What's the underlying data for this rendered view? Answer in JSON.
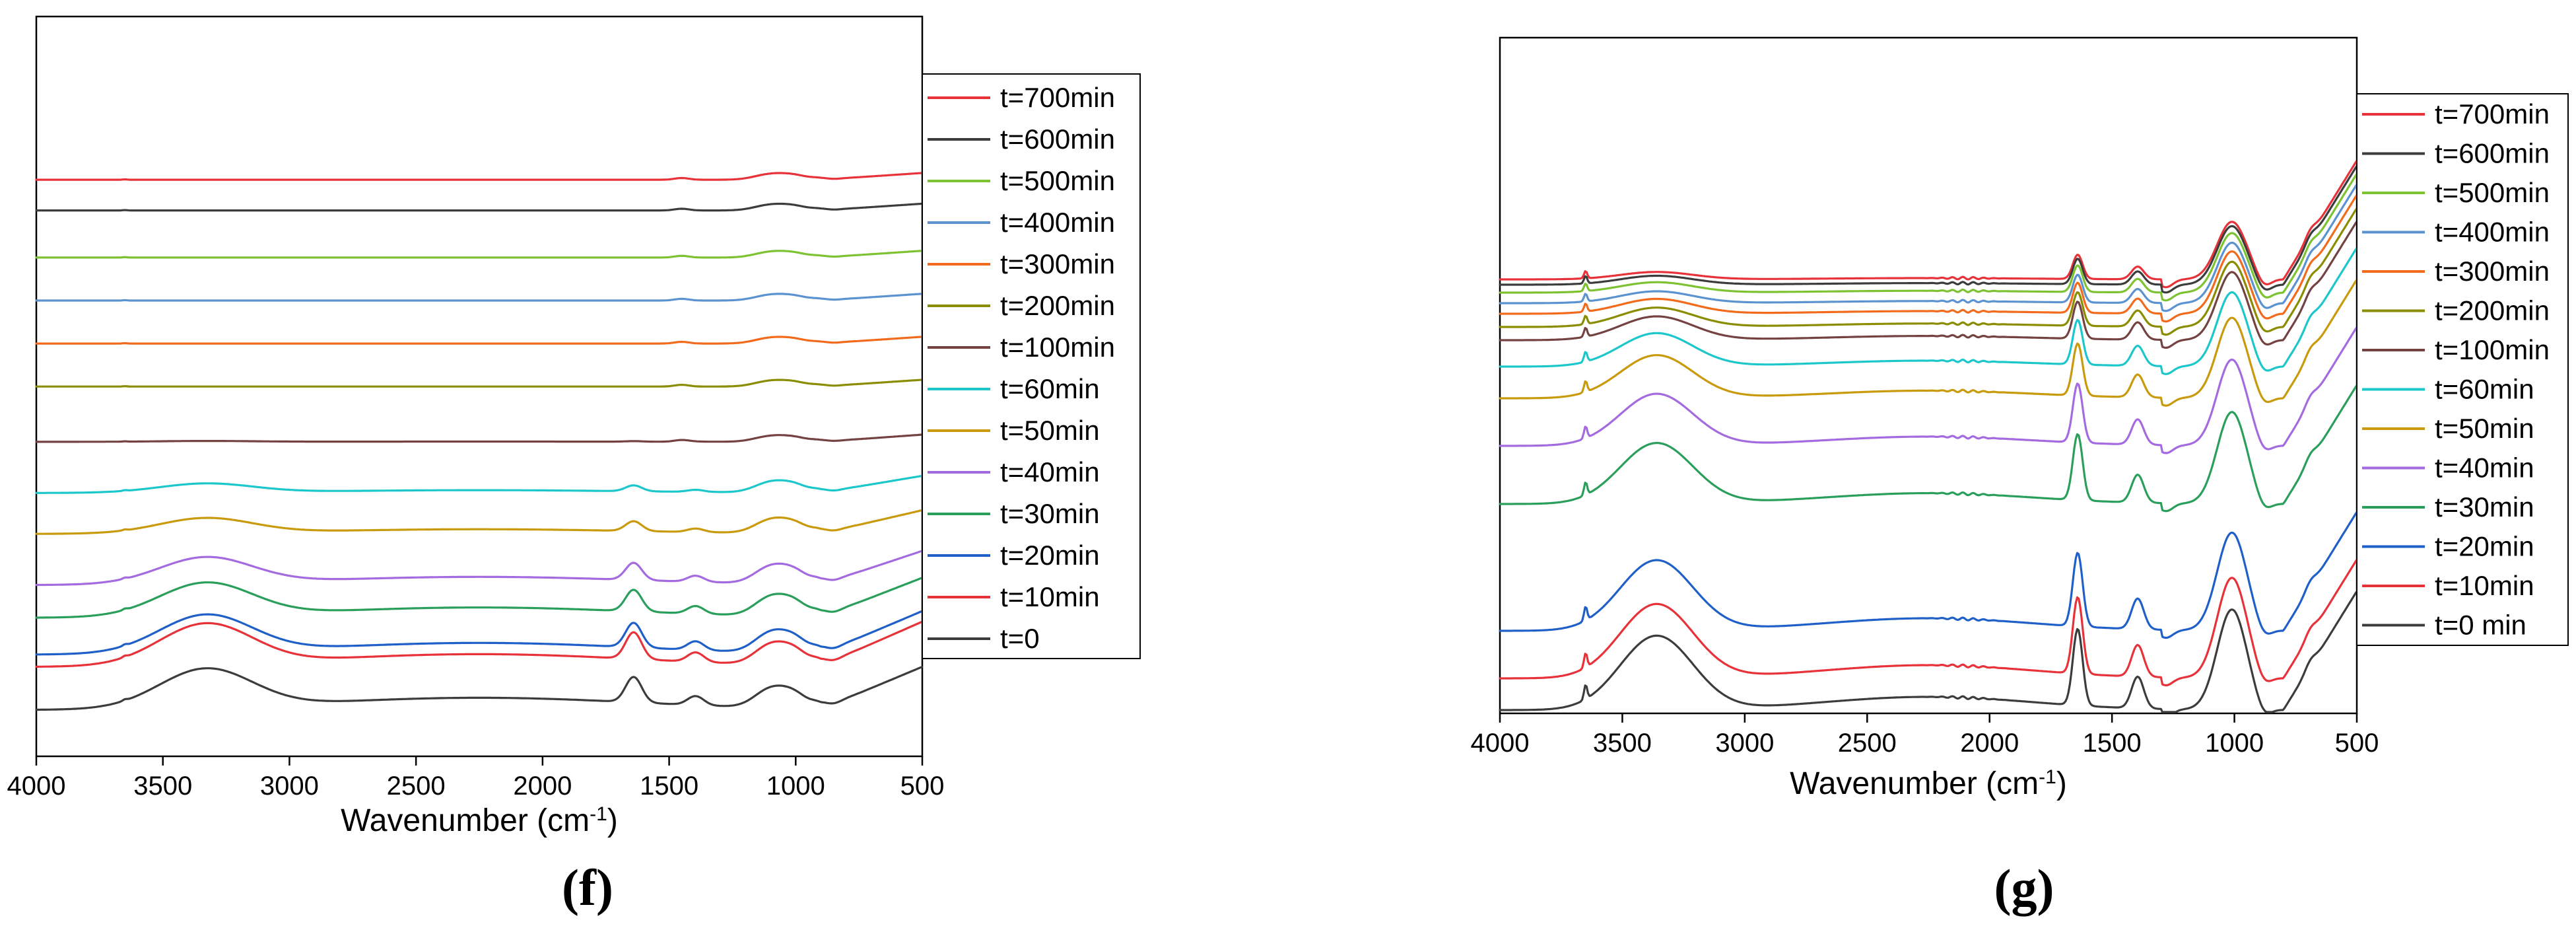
{
  "chart_data": [
    {
      "panel": "(f)",
      "type": "line",
      "title": "",
      "xlabel": "Wavenumber (cm-1)",
      "xlabel_main": "Wavenumber (cm",
      "xlabel_sup": "-1",
      "xlabel_end": ")",
      "ylabel": "",
      "xlim": [
        4000,
        500
      ],
      "xticks": [
        4000,
        3500,
        3000,
        2500,
        2000,
        1500,
        1000,
        500
      ],
      "y_axis": "stacked absorbance traces (no y ticks)",
      "legend_position": "right, outside the plot",
      "series": [
        {
          "name": "t=700min",
          "color": "#E8323A",
          "offset": 12.95,
          "scale": 0.3,
          "pre": 0.0,
          "variant": "late"
        },
        {
          "name": "t=600min",
          "color": "#3C3C3C",
          "offset": 12.2,
          "scale": 0.3,
          "pre": 0.0,
          "variant": "late"
        },
        {
          "name": "t=500min",
          "color": "#7DC231",
          "offset": 11.05,
          "scale": 0.3,
          "pre": 0.0,
          "variant": "late"
        },
        {
          "name": "t=400min",
          "color": "#5B92D0",
          "offset": 10.0,
          "scale": 0.3,
          "pre": 0.0,
          "variant": "late"
        },
        {
          "name": "t=300min",
          "color": "#F26B1D",
          "offset": 8.95,
          "scale": 0.3,
          "pre": 0.0,
          "variant": "late"
        },
        {
          "name": "t=200min",
          "color": "#8A8D00",
          "offset": 7.9,
          "scale": 0.3,
          "pre": 0.0,
          "variant": "late"
        },
        {
          "name": "t=100min",
          "color": "#734241",
          "offset": 6.55,
          "scale": 0.3,
          "pre": 0.07,
          "variant": "mid"
        },
        {
          "name": "t=60min",
          "color": "#1CC7CB",
          "offset": 5.3,
          "scale": 0.55,
          "pre": 0.42,
          "variant": "early"
        },
        {
          "name": "t=50min",
          "color": "#C89A0C",
          "offset": 4.3,
          "scale": 0.7,
          "pre": 0.55,
          "variant": "early"
        },
        {
          "name": "t=40min",
          "color": "#A46AE0",
          "offset": 3.05,
          "scale": 0.9,
          "pre": 0.75,
          "variant": "early"
        },
        {
          "name": "t=30min",
          "color": "#2A9E5B",
          "offset": 2.25,
          "scale": 1.0,
          "pre": 0.85,
          "variant": "early"
        },
        {
          "name": "t=20min",
          "color": "#1F5FC8",
          "offset": 1.35,
          "scale": 1.05,
          "pre": 0.92,
          "variant": "early"
        },
        {
          "name": "t=10min",
          "color": "#E8323A",
          "offset": 1.05,
          "scale": 1.05,
          "pre": 1.0,
          "variant": "early"
        },
        {
          "name": "t=0",
          "color": "#3C3C3C",
          "offset": 0.0,
          "scale": 1.0,
          "pre": 1.0,
          "variant": "early"
        }
      ]
    },
    {
      "panel": "(g)",
      "type": "line",
      "title": "",
      "xlabel": "Wavenumber (cm-1)",
      "xlabel_main": "Wavenumber (cm",
      "xlabel_sup": "-1",
      "xlabel_end": ")",
      "ylabel": "",
      "xlim": [
        4000,
        500
      ],
      "xticks": [
        4000,
        3500,
        3000,
        2500,
        2000,
        1500,
        1000,
        500
      ],
      "y_axis": "stacked absorbance traces (no y ticks)",
      "legend_position": "right, outside the plot",
      "series": [
        {
          "name": "t=700min",
          "color": "#E8323A",
          "offset": 16.3,
          "pre": 0.1
        },
        {
          "name": "t=600min",
          "color": "#3C3C3C",
          "offset": 16.1,
          "pre": 0.12
        },
        {
          "name": "t=500min",
          "color": "#7DC231",
          "offset": 15.8,
          "pre": 0.14
        },
        {
          "name": "t=400min",
          "color": "#5B92D0",
          "offset": 15.4,
          "pre": 0.16
        },
        {
          "name": "t=300min",
          "color": "#F26B1D",
          "offset": 15.0,
          "pre": 0.2
        },
        {
          "name": "t=200min",
          "color": "#8A8D00",
          "offset": 14.5,
          "pre": 0.26
        },
        {
          "name": "t=100min",
          "color": "#734241",
          "offset": 14.0,
          "pre": 0.32
        },
        {
          "name": "t=60min",
          "color": "#1CC7CB",
          "offset": 13.0,
          "pre": 0.45
        },
        {
          "name": "t=50min",
          "color": "#C89A0C",
          "offset": 11.8,
          "pre": 0.58
        },
        {
          "name": "t=40min",
          "color": "#A46AE0",
          "offset": 10.0,
          "pre": 0.7
        },
        {
          "name": "t=30min",
          "color": "#2A9E5B",
          "offset": 7.8,
          "pre": 0.82
        },
        {
          "name": "t=20min",
          "color": "#1F5FC8",
          "offset": 3.0,
          "pre": 0.95
        },
        {
          "name": "t=10min",
          "color": "#E8323A",
          "offset": 1.2,
          "pre": 1.0
        },
        {
          "name": "t=0 min",
          "color": "#3C3C3C",
          "offset": 0.0,
          "pre": 1.0
        }
      ]
    }
  ]
}
